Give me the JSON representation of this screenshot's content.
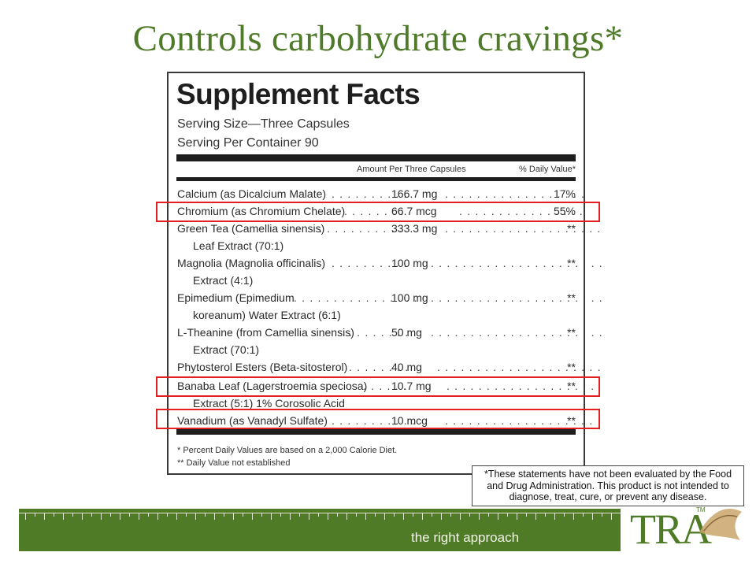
{
  "slide": {
    "title": "Controls carbohydrate cravings*"
  },
  "facts": {
    "heading": "Supplement Facts",
    "serving_size": "Serving Size—Three Capsules",
    "servings_per_container": "Serving Per Container 90",
    "col_amount": "Amount Per Three Capsules",
    "col_dv": "% Daily Value*",
    "rows": [
      {
        "name": "Calcium (as Dicalcium Malate)",
        "amount": "166.7 mg",
        "dv": "17%",
        "cont": ""
      },
      {
        "name": "Chromium (as Chromium Chelate)",
        "amount": "66.7 mcg",
        "dv": "55%",
        "cont": ""
      },
      {
        "name": "Green Tea (Camellia sinensis)",
        "amount": "333.3 mg",
        "dv": "**",
        "cont": "Leaf Extract (70:1)"
      },
      {
        "name": "Magnolia (Magnolia officinalis)",
        "amount": "100 mg",
        "dv": "**",
        "cont": "Extract (4:1)"
      },
      {
        "name": "Epimedium (Epimedium",
        "amount": "100 mg",
        "dv": "**",
        "cont": "koreanum) Water Extract (6:1)"
      },
      {
        "name": "L-Theanine (from Camellia sinensis)",
        "amount": "50 mg",
        "dv": "**",
        "cont": "Extract (70:1)"
      },
      {
        "name": "Phytosterol Esters (Beta-sitosterol)",
        "amount": "40 mg",
        "dv": "**",
        "cont": ""
      },
      {
        "name": "Banaba Leaf (Lagerstroemia speciosa)",
        "amount": "10.7 mg",
        "dv": "**",
        "cont": "Extract (5:1) 1% Corosolic Acid"
      },
      {
        "name": "Vanadium (as Vanadyl Sulfate)",
        "amount": "10 mcg",
        "dv": "**",
        "cont": ""
      }
    ],
    "footnote_1": "* Percent Daily Values are based on a 2,000 Calorie Diet.",
    "footnote_2": "** Daily Value not established"
  },
  "highlight_color": "#e32020",
  "disclaimer": "*These statements have not been evaluated by the Food and Drug Administration. This product is not intended to diagnose, treat, cure, or prevent any disease.",
  "footer": {
    "tagline": "the right approach",
    "brand_color": "#4f7a26",
    "logo_text": "TRA",
    "logo_tm": "TM"
  }
}
